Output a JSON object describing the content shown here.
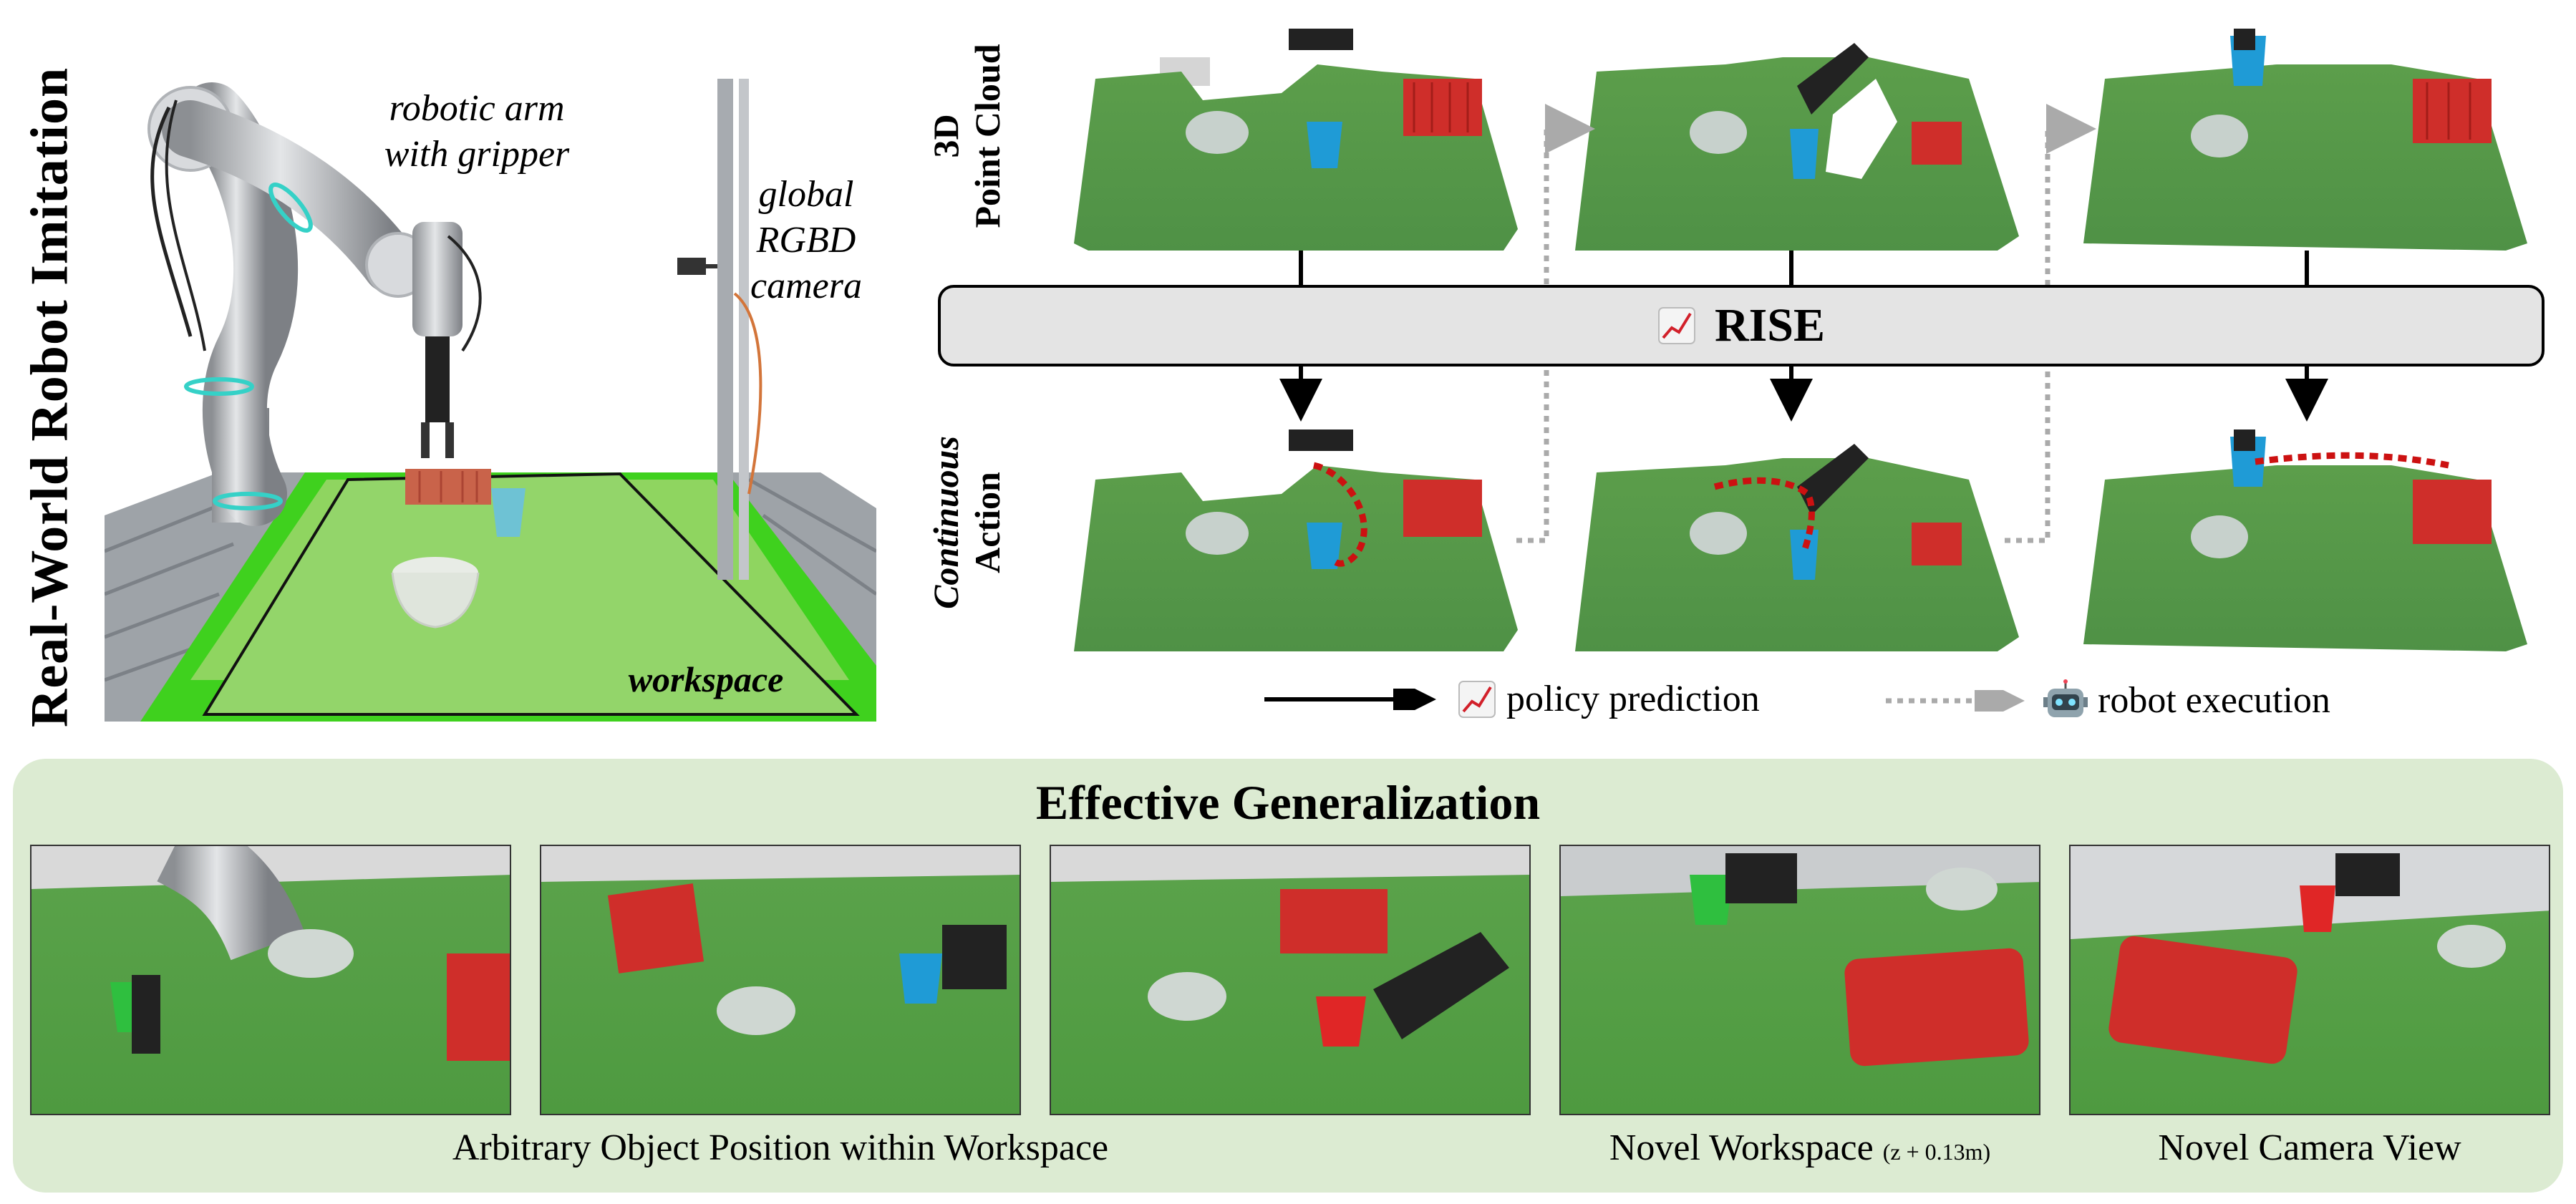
{
  "header": {
    "vertical_title": "Real-World Robot Imitation"
  },
  "robot_photo": {
    "arm_caption_line1": "robotic arm",
    "arm_caption_line2": "with gripper",
    "camera_caption_line1": "global",
    "camera_caption_line2": "RGBD",
    "camera_caption_line3": "camera",
    "workspace_label": "workspace"
  },
  "pipeline": {
    "row1_label_line1": "3D",
    "row1_label_line2": "Point Cloud",
    "row2_label_line1": "Continuous",
    "row2_label_line2": "Action",
    "model_name": "RISE",
    "model_icon": "chart-increasing-icon"
  },
  "legend": {
    "policy_label": "policy prediction",
    "policy_icon": "chart-increasing-icon",
    "execution_label": "robot execution",
    "execution_icon": "robot-face-icon"
  },
  "generalization": {
    "title": "Effective Generalization",
    "caption_positions": "Arbitrary Object Position within Workspace",
    "caption_workspace": "Novel Workspace",
    "caption_workspace_note": "(z + 0.13m)",
    "caption_camera": "Novel Camera View"
  },
  "colors": {
    "table_green": "#6bb24a",
    "cloth_green": "#3fd11e",
    "panel_bg": "#dcebd2",
    "basket_red": "#d9312b",
    "cup_blue": "#1e9bd7",
    "trajectory_red": "#cc1111",
    "rise_bar": "#e4e4e4"
  }
}
